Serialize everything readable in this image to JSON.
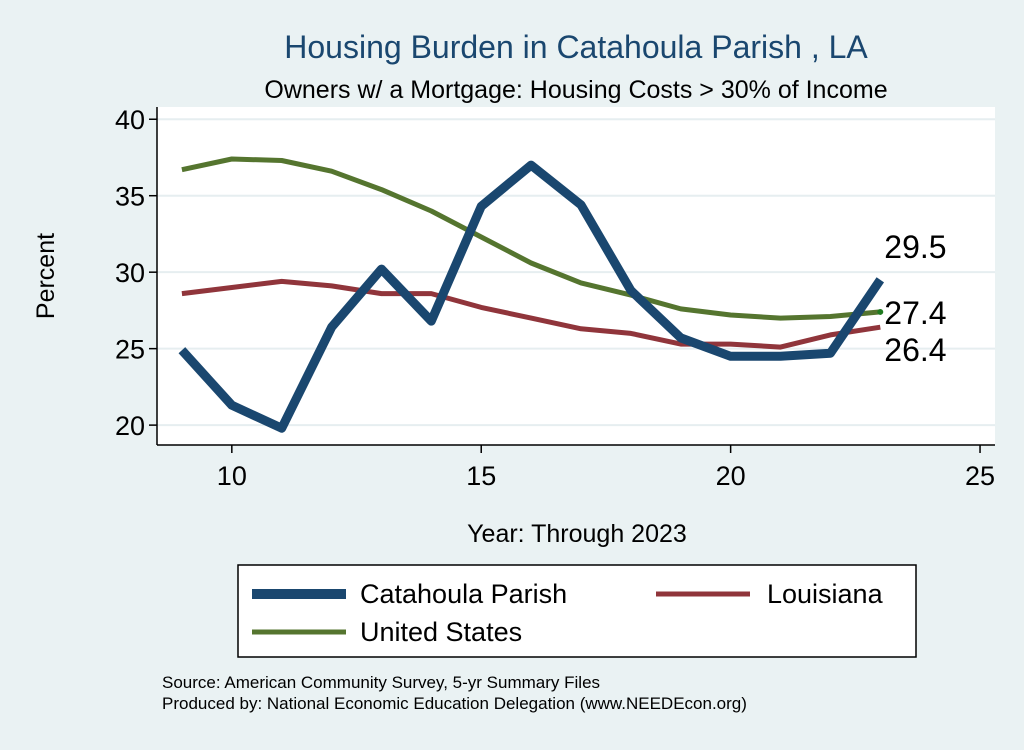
{
  "chart_data": {
    "type": "line",
    "title": "Housing Burden in Catahoula Parish , LA",
    "subtitle": "Owners w/ a Mortgage: Housing Costs > 30% of Income",
    "xlabel": "Year: Through 2023",
    "ylabel": "Percent",
    "xlim": [
      8.5,
      25.3
    ],
    "ylim": [
      18.7,
      40.8
    ],
    "xticks": [
      10,
      15,
      20,
      25
    ],
    "yticks": [
      20,
      25,
      30,
      35,
      40
    ],
    "grid": true,
    "legend_position": "bottom",
    "x": [
      9,
      10,
      11,
      12,
      13,
      14,
      15,
      16,
      17,
      18,
      19,
      20,
      21,
      22,
      23
    ],
    "series": [
      {
        "name": "Catahoula Parish",
        "color": "#1a476f",
        "values": [
          24.9,
          21.3,
          19.8,
          26.4,
          30.2,
          26.8,
          34.3,
          37.0,
          34.4,
          28.8,
          25.7,
          24.5,
          24.5,
          24.7,
          29.5
        ],
        "end_label": "29.5"
      },
      {
        "name": "Louisiana",
        "color": "#90353b",
        "values": [
          28.6,
          29.0,
          29.4,
          29.1,
          28.6,
          28.6,
          27.7,
          27.0,
          26.3,
          26.0,
          25.3,
          25.3,
          25.1,
          25.9,
          26.4
        ],
        "end_label": "26.4"
      },
      {
        "name": "United States",
        "color": "#55752f",
        "values": [
          36.7,
          37.4,
          37.3,
          36.6,
          35.4,
          34.0,
          32.3,
          30.6,
          29.3,
          28.5,
          27.6,
          27.2,
          27.0,
          27.1,
          27.4
        ],
        "end_label": "27.4"
      }
    ]
  },
  "source_note": "Source: American Community Survey, 5-yr Summary Files",
  "producer_note": "Produced by: National Economic Education Delegation (www.NEEDEcon.org)"
}
